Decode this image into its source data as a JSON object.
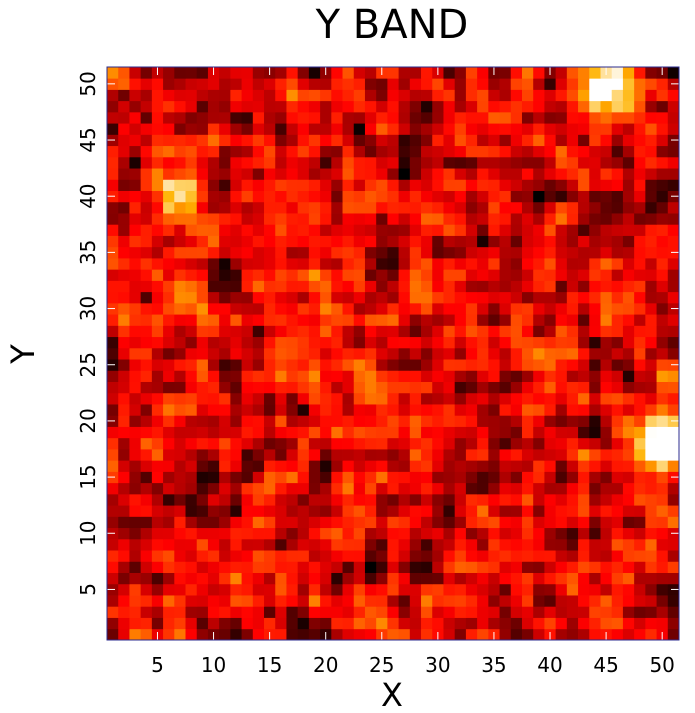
{
  "chart_data": {
    "type": "heatmap",
    "title": "Y BAND",
    "xlabel": "X",
    "ylabel": "Y",
    "xlim": [
      0.5,
      51.5
    ],
    "ylim": [
      0.5,
      51.5
    ],
    "grid": false,
    "colormap": "hot (black - red - orange - yellow - white)",
    "x_ticks": [
      5,
      10,
      15,
      20,
      25,
      30,
      35,
      40,
      45,
      50
    ],
    "y_ticks": [
      5,
      10,
      15,
      20,
      25,
      30,
      35,
      40,
      45,
      50
    ],
    "grid_size": [
      51,
      51
    ],
    "colors": {
      "frame": "#2b2b8f",
      "background": "#ffffff",
      "text": "#000000"
    },
    "bright_sources": [
      {
        "x": 49.5,
        "y": 18.0,
        "peak": 1.0
      },
      {
        "x": 45.0,
        "y": 49.5,
        "peak": 0.88
      },
      {
        "x": 6.5,
        "y": 40.5,
        "peak": 0.72
      }
    ]
  }
}
